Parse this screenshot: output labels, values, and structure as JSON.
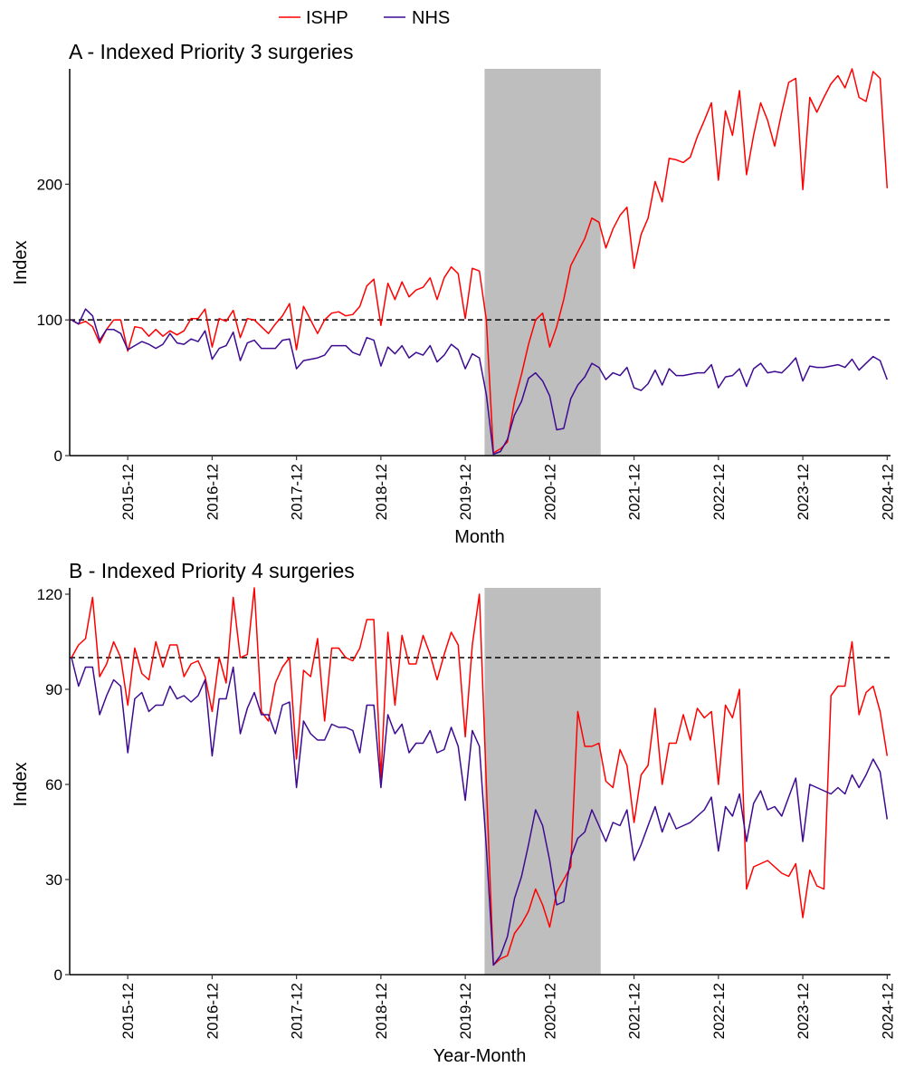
{
  "legend": {
    "position": "top",
    "entries": [
      {
        "name": "ISHP",
        "color": "#ff0000"
      },
      {
        "name": "NHS",
        "color": "#3d0a91"
      }
    ]
  },
  "chart_data": [
    {
      "type": "line",
      "title": "A - Indexed Priority 3 surgeries",
      "xlabel": "Month",
      "ylabel": "Index",
      "x_range": [
        "2015-04",
        "2024-12"
      ],
      "x_frequency": "monthly",
      "x_ticks": [
        "2015-12",
        "2016-12",
        "2017-12",
        "2018-12",
        "2019-12",
        "2020-12",
        "2021-12",
        "2022-12",
        "2023-12",
        "2024-12"
      ],
      "ylim": [
        0,
        285
      ],
      "y_ticks": [
        0,
        100,
        200
      ],
      "reference_line": 100,
      "shaded_period": [
        "2020-03",
        "2021-07"
      ],
      "shade_color": "#bebebe",
      "grid": false,
      "series": [
        {
          "name": "ISHP",
          "color": "#ff0000",
          "values": [
            100,
            97,
            99,
            95,
            83,
            93,
            100,
            100,
            77,
            95,
            94,
            88,
            93,
            88,
            92,
            89,
            92,
            101,
            101,
            108,
            80,
            101,
            99,
            107,
            87,
            101,
            100,
            95,
            90,
            97,
            103,
            112,
            78,
            110,
            100,
            90,
            100,
            105,
            106,
            103,
            104,
            110,
            125,
            130,
            96,
            127,
            115,
            128,
            117,
            122,
            124,
            131,
            115,
            131,
            139,
            134,
            101,
            138,
            136,
            100,
            2,
            5,
            10,
            40,
            60,
            82,
            100,
            105,
            80,
            95,
            115,
            140,
            150,
            160,
            175,
            172,
            153,
            167,
            177,
            183,
            138,
            163,
            175,
            202,
            187,
            219,
            218,
            216,
            220,
            235,
            247,
            260,
            203,
            254,
            236,
            269,
            207,
            236,
            260,
            247,
            228,
            253,
            275,
            278,
            196,
            264,
            253,
            264,
            274,
            280,
            271,
            285,
            264,
            261,
            283,
            278,
            197
          ]
        },
        {
          "name": "NHS",
          "color": "#3d0a91",
          "values": [
            100,
            97,
            108,
            103,
            85,
            93,
            93,
            90,
            78,
            81,
            84,
            82,
            79,
            82,
            90,
            83,
            82,
            86,
            84,
            92,
            71,
            79,
            81,
            91,
            70,
            83,
            85,
            79,
            79,
            79,
            85,
            86,
            64,
            70,
            71,
            72,
            74,
            81,
            81,
            81,
            76,
            74,
            87,
            85,
            66,
            80,
            75,
            81,
            72,
            76,
            74,
            81,
            69,
            74,
            82,
            78,
            64,
            75,
            72,
            45,
            1,
            3,
            12,
            30,
            40,
            57,
            61,
            55,
            44,
            19,
            20,
            42,
            52,
            58,
            68,
            65,
            56,
            61,
            59,
            65,
            50,
            48,
            53,
            63,
            52,
            64,
            59,
            59,
            60,
            61,
            61,
            67,
            50,
            58,
            59,
            64,
            51,
            64,
            68,
            61,
            62,
            61,
            66,
            72,
            55,
            66,
            65,
            65,
            66,
            67,
            65,
            71,
            63,
            68,
            73,
            70,
            56
          ]
        }
      ]
    },
    {
      "type": "line",
      "title": "B - Indexed Priority 4 surgeries",
      "xlabel": "Year-Month",
      "ylabel": "Index",
      "x_range": [
        "2015-04",
        "2024-12"
      ],
      "x_frequency": "monthly",
      "x_ticks": [
        "2015-12",
        "2016-12",
        "2017-12",
        "2018-12",
        "2019-12",
        "2020-12",
        "2021-12",
        "2022-12",
        "2023-12",
        "2024-12"
      ],
      "ylim": [
        0,
        122
      ],
      "y_ticks": [
        0,
        30,
        60,
        90,
        120
      ],
      "reference_line": 100,
      "shaded_period": [
        "2020-03",
        "2021-07"
      ],
      "shade_color": "#bebebe",
      "grid": false,
      "series": [
        {
          "name": "ISHP",
          "color": "#ff0000",
          "values": [
            100,
            104,
            106,
            119,
            94,
            98,
            105,
            100,
            85,
            103,
            95,
            93,
            105,
            97,
            104,
            104,
            94,
            98,
            99,
            94,
            83,
            100,
            92,
            119,
            100,
            101,
            122,
            83,
            80,
            92,
            97,
            100,
            68,
            96,
            94,
            106,
            80,
            103,
            103,
            100,
            99,
            103,
            112,
            112,
            62,
            108,
            85,
            107,
            98,
            98,
            107,
            101,
            93,
            101,
            108,
            104,
            75,
            104,
            120,
            60,
            3,
            5,
            6,
            13,
            16,
            20,
            27,
            22,
            15,
            26,
            30,
            34,
            83,
            72,
            72,
            73,
            61,
            59,
            71,
            66,
            48,
            63,
            66,
            84,
            60,
            73,
            73,
            82,
            74,
            84,
            81,
            83,
            60,
            85,
            81,
            90,
            27,
            34,
            35,
            36,
            34,
            32,
            31,
            35,
            18,
            33,
            28,
            27,
            88,
            91,
            91,
            105,
            82,
            89,
            91,
            83,
            69
          ]
        },
        {
          "name": "NHS",
          "color": "#3d0a91",
          "values": [
            100,
            91,
            97,
            97,
            82,
            88,
            93,
            91,
            70,
            87,
            89,
            83,
            85,
            85,
            91,
            87,
            88,
            86,
            88,
            93,
            69,
            87,
            87,
            97,
            76,
            84,
            89,
            82,
            82,
            76,
            85,
            86,
            59,
            80,
            76,
            74,
            74,
            79,
            78,
            78,
            77,
            70,
            85,
            85,
            59,
            82,
            76,
            79,
            70,
            73,
            73,
            77,
            70,
            71,
            78,
            72,
            55,
            77,
            72,
            40,
            3,
            6,
            12,
            24,
            31,
            41,
            52,
            47,
            36,
            22,
            23,
            37,
            43,
            45,
            52,
            47,
            42,
            48,
            47,
            52,
            36,
            41,
            47,
            53,
            45,
            51,
            46,
            47,
            48,
            50,
            52,
            56,
            39,
            53,
            50,
            57,
            42,
            54,
            58,
            52,
            53,
            50,
            56,
            62,
            42,
            60,
            59,
            58,
            57,
            59,
            57,
            63,
            59,
            63,
            68,
            64,
            49
          ]
        }
      ]
    }
  ]
}
